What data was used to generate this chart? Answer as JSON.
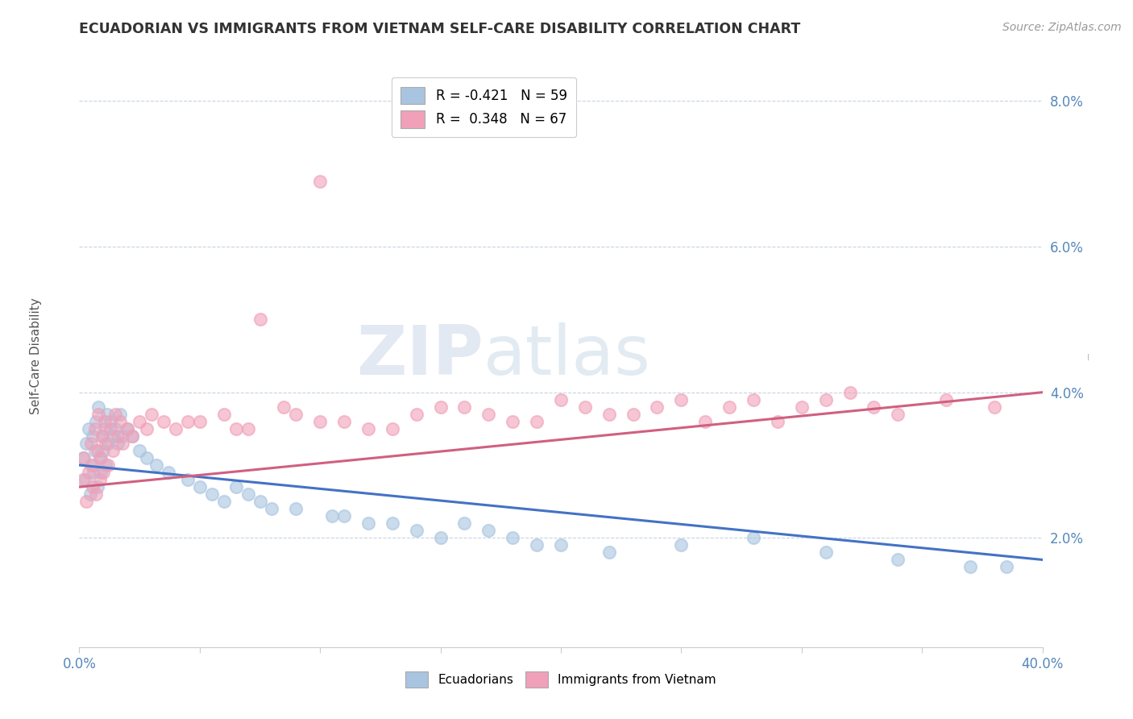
{
  "title": "ECUADORIAN VS IMMIGRANTS FROM VIETNAM SELF-CARE DISABILITY CORRELATION CHART",
  "source": "Source: ZipAtlas.com",
  "legend_label1": "Ecuadorians",
  "legend_label2": "Immigrants from Vietnam",
  "R1": -0.421,
  "N1": 59,
  "R2": 0.348,
  "N2": 67,
  "blue_color": "#a8c4e0",
  "pink_color": "#f0a0b8",
  "blue_line_color": "#4472c4",
  "pink_line_color": "#d06080",
  "xmin": 0.0,
  "xmax": 40.0,
  "ymin": 0.5,
  "ymax": 8.5,
  "ytick_vals": [
    2.0,
    4.0,
    6.0,
    8.0
  ],
  "xtick_vals": [
    0.0,
    5.0,
    10.0,
    15.0,
    20.0,
    25.0,
    30.0,
    35.0,
    40.0
  ],
  "blue_x": [
    0.15,
    0.25,
    0.3,
    0.4,
    0.45,
    0.5,
    0.55,
    0.6,
    0.65,
    0.7,
    0.75,
    0.8,
    0.85,
    0.9,
    0.95,
    1.0,
    1.05,
    1.1,
    1.15,
    1.2,
    1.3,
    1.4,
    1.5,
    1.6,
    1.7,
    1.8,
    2.0,
    2.2,
    2.5,
    2.8,
    3.2,
    3.7,
    4.5,
    5.5,
    6.5,
    7.5,
    9.0,
    10.5,
    12.0,
    14.0,
    16.0,
    18.0,
    20.0,
    22.0,
    25.0,
    28.0,
    31.0,
    34.0,
    37.0,
    38.5,
    5.0,
    6.0,
    7.0,
    8.0,
    11.0,
    13.0,
    15.0,
    17.0,
    19.0
  ],
  "blue_y": [
    3.1,
    2.8,
    3.3,
    3.5,
    2.6,
    3.0,
    3.4,
    2.9,
    3.2,
    3.6,
    2.7,
    3.8,
    3.1,
    2.9,
    3.4,
    3.2,
    3.5,
    3.0,
    3.7,
    3.3,
    3.6,
    3.4,
    3.5,
    3.3,
    3.7,
    3.4,
    3.5,
    3.4,
    3.2,
    3.1,
    3.0,
    2.9,
    2.8,
    2.6,
    2.7,
    2.5,
    2.4,
    2.3,
    2.2,
    2.1,
    2.2,
    2.0,
    1.9,
    1.8,
    1.9,
    2.0,
    1.8,
    1.7,
    1.6,
    1.6,
    2.7,
    2.5,
    2.6,
    2.4,
    2.3,
    2.2,
    2.0,
    2.1,
    1.9
  ],
  "pink_x": [
    0.15,
    0.2,
    0.3,
    0.4,
    0.5,
    0.55,
    0.6,
    0.65,
    0.7,
    0.75,
    0.8,
    0.85,
    0.9,
    0.95,
    1.0,
    1.05,
    1.1,
    1.2,
    1.3,
    1.4,
    1.5,
    1.6,
    1.7,
    1.8,
    2.0,
    2.2,
    2.5,
    2.8,
    3.0,
    3.5,
    4.0,
    5.0,
    6.0,
    7.0,
    8.5,
    10.0,
    12.0,
    14.0,
    16.0,
    18.0,
    20.0,
    22.0,
    24.0,
    26.0,
    28.0,
    30.0,
    32.0,
    34.0,
    36.0,
    38.0,
    4.5,
    6.5,
    9.0,
    11.0,
    13.0,
    15.0,
    17.0,
    19.0,
    21.0,
    23.0,
    25.0,
    27.0,
    29.0,
    31.0,
    33.0,
    10.0,
    7.5
  ],
  "pink_y": [
    2.8,
    3.1,
    2.5,
    2.9,
    3.3,
    2.7,
    3.0,
    3.5,
    2.6,
    3.2,
    3.7,
    2.8,
    3.1,
    3.4,
    2.9,
    3.6,
    3.3,
    3.0,
    3.5,
    3.2,
    3.7,
    3.4,
    3.6,
    3.3,
    3.5,
    3.4,
    3.6,
    3.5,
    3.7,
    3.6,
    3.5,
    3.6,
    3.7,
    3.5,
    3.8,
    3.6,
    3.5,
    3.7,
    3.8,
    3.6,
    3.9,
    3.7,
    3.8,
    3.6,
    3.9,
    3.8,
    4.0,
    3.7,
    3.9,
    3.8,
    3.6,
    3.5,
    3.7,
    3.6,
    3.5,
    3.8,
    3.7,
    3.6,
    3.8,
    3.7,
    3.9,
    3.8,
    3.6,
    3.9,
    3.8,
    6.9,
    5.0
  ],
  "watermark_zip": "ZIP",
  "watermark_atlas": "atlas",
  "bg_color": "#ffffff",
  "grid_color": "#c8d4e0",
  "title_color": "#333333",
  "axis_label_color": "#5588bb",
  "blue_line_start_y": 3.0,
  "blue_line_end_y": 1.7,
  "pink_line_start_y": 2.7,
  "pink_line_end_y": 4.0
}
